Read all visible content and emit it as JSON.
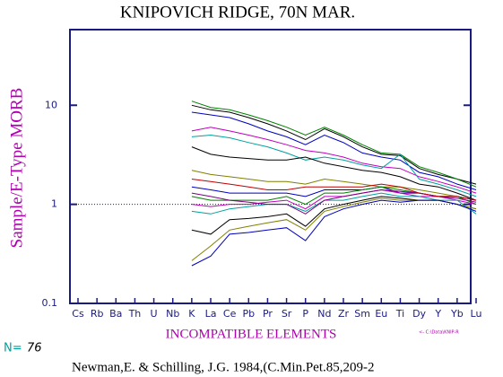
{
  "chart_data": {
    "type": "line",
    "title": "KNIPOVICH RIDGE, 70N MAR.",
    "ylabel": "Sample/E-Type MORB",
    "xlabel": "INCOMPATIBLE ELEMENTS",
    "count_label": "N=",
    "count": 76,
    "file_note": "<- C:\\Data\\KNIP-R",
    "citation": "Newman,E. & Schilling, J.G. 1984,(C.Min.Pet.85,209-2",
    "log_y": true,
    "reference_line": 1,
    "ylim": [
      0.1,
      58
    ],
    "yticks": [
      0.1,
      1,
      10
    ],
    "categories": [
      "Cs",
      "Rb",
      "Ba",
      "Th",
      "U",
      "Nb",
      "K",
      "La",
      "Ce",
      "Pb",
      "Pr",
      "Sr",
      "P",
      "Nd",
      "Zr",
      "Sm",
      "Eu",
      "Ti",
      "Dy",
      "Y",
      "Yb",
      "Lu"
    ],
    "series": [
      {
        "color": "#000000",
        "values": [
          null,
          null,
          null,
          null,
          null,
          null,
          10,
          9,
          8.5,
          7.5,
          6.5,
          5.5,
          4.5,
          5.8,
          4.8,
          3.8,
          3.2,
          3.1,
          2.3,
          2,
          1.8,
          1.6
        ]
      },
      {
        "color": "#008000",
        "values": [
          null,
          null,
          null,
          null,
          null,
          null,
          11,
          9.5,
          9,
          8,
          7,
          6,
          5,
          6,
          5,
          4,
          3.3,
          3.2,
          2.4,
          2.1,
          1.8,
          1.5
        ]
      },
      {
        "color": "#0000c0",
        "values": [
          null,
          null,
          null,
          null,
          null,
          null,
          8.5,
          8,
          7.5,
          6.5,
          5.5,
          4.8,
          4,
          5,
          4.2,
          3.3,
          3,
          2.8,
          2.1,
          1.9,
          1.6,
          1.4
        ]
      },
      {
        "color": "#c000c0",
        "values": [
          null,
          null,
          null,
          null,
          null,
          null,
          5.5,
          6,
          5.5,
          5,
          4.5,
          4,
          3.5,
          3.3,
          3,
          2.6,
          2.4,
          2.3,
          1.9,
          1.7,
          1.5,
          1.3
        ]
      },
      {
        "color": "#00a0a0",
        "values": [
          null,
          null,
          null,
          null,
          null,
          null,
          4.8,
          5,
          4.7,
          4.2,
          3.8,
          3.3,
          2.8,
          3,
          2.8,
          2.5,
          2.3,
          3.2,
          1.8,
          1.6,
          1.4,
          1.2
        ]
      },
      {
        "color": "#000000",
        "values": [
          null,
          null,
          null,
          null,
          null,
          null,
          3.8,
          3.2,
          3,
          2.9,
          2.8,
          2.8,
          3,
          2.6,
          2.4,
          2.2,
          2.1,
          1.9,
          1.6,
          1.5,
          1.3,
          1.1
        ]
      },
      {
        "color": "#808000",
        "values": [
          null,
          null,
          null,
          null,
          null,
          null,
          2.2,
          2,
          1.9,
          1.8,
          1.7,
          1.7,
          1.6,
          1.8,
          1.7,
          1.6,
          1.5,
          1.5,
          1.4,
          1.3,
          1.2,
          1.1
        ]
      },
      {
        "color": "#0000c0",
        "values": [
          null,
          null,
          null,
          null,
          null,
          null,
          1.5,
          1.4,
          1.3,
          1.3,
          1.3,
          1.3,
          1.2,
          1.4,
          1.4,
          1.4,
          1.5,
          1.3,
          1.3,
          1.2,
          1.2,
          1.1
        ]
      },
      {
        "color": "#008000",
        "values": [
          null,
          null,
          null,
          null,
          null,
          null,
          1.2,
          1.1,
          1.1,
          1.1,
          1.1,
          1.2,
          1,
          1.3,
          1.3,
          1.4,
          1.5,
          1.4,
          1.3,
          1.2,
          1.2,
          1
        ]
      },
      {
        "color": "#c000c0",
        "values": [
          null,
          null,
          null,
          null,
          null,
          null,
          1,
          0.95,
          1,
          1,
          1.05,
          1.1,
          0.9,
          1.2,
          1.2,
          1.3,
          1.4,
          1.3,
          1.2,
          1.2,
          1.1,
          1
        ]
      },
      {
        "color": "#00a0a0",
        "values": [
          null,
          null,
          null,
          null,
          null,
          null,
          0.85,
          0.8,
          0.9,
          0.95,
          1,
          1,
          0.85,
          1.1,
          1.1,
          1.2,
          1.3,
          1.2,
          1.2,
          1.1,
          1.1,
          0.8
        ]
      },
      {
        "color": "#000000",
        "values": [
          null,
          null,
          null,
          null,
          null,
          null,
          0.55,
          0.5,
          0.7,
          0.72,
          0.75,
          0.8,
          0.6,
          0.9,
          1,
          1.1,
          1.2,
          1.15,
          1.1,
          1.1,
          1,
          0.9
        ]
      },
      {
        "color": "#808000",
        "values": [
          null,
          null,
          null,
          null,
          null,
          null,
          0.27,
          0.38,
          0.55,
          0.6,
          0.65,
          0.7,
          0.55,
          0.85,
          0.95,
          1.05,
          1.15,
          1.1,
          1.1,
          1.1,
          1,
          0.9
        ]
      },
      {
        "color": "#0000c0",
        "values": [
          null,
          null,
          null,
          null,
          null,
          null,
          0.24,
          0.3,
          0.5,
          0.52,
          0.55,
          0.58,
          0.43,
          0.75,
          0.9,
          1,
          1.1,
          1.05,
          1.1,
          1.1,
          1,
          0.85
        ]
      },
      {
        "color": "#800080",
        "values": [
          null,
          null,
          null,
          null,
          null,
          null,
          1.3,
          1.2,
          1.1,
          1.05,
          1,
          1,
          0.8,
          1.1,
          1.2,
          1.3,
          1.4,
          1.35,
          1.3,
          1.2,
          1.15,
          1.05
        ]
      },
      {
        "color": "#c00000",
        "values": [
          null,
          null,
          null,
          null,
          null,
          null,
          1.8,
          1.7,
          1.6,
          1.5,
          1.4,
          1.4,
          1.5,
          1.5,
          1.5,
          1.5,
          1.6,
          1.5,
          1.3,
          1.2,
          1.2,
          1.1
        ]
      }
    ]
  }
}
